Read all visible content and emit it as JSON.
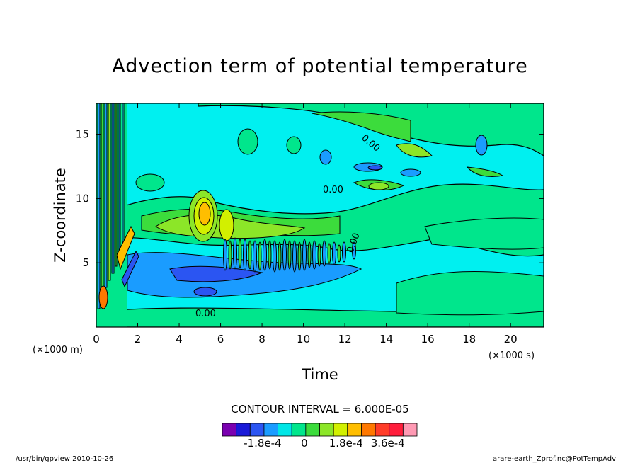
{
  "chart_data": {
    "type": "heatmap",
    "title": "Advection term of potential temperature",
    "xlabel": "Time",
    "ylabel": "Z-coordinate",
    "x_unit": "(×1000 s)",
    "y_unit": "(×1000 m)",
    "xlim": [
      0,
      21.6
    ],
    "ylim": [
      0,
      17.4
    ],
    "x_ticks": [
      "0",
      "2",
      "4",
      "6",
      "8",
      "10",
      "12",
      "14",
      "16",
      "18",
      "20"
    ],
    "y_ticks": [
      "5",
      "10",
      "15"
    ],
    "contour_labels": [
      "0.00",
      "0.00",
      "0.00",
      "0.00"
    ],
    "contour_interval_text": "CONTOUR INTERVAL = 6.000E-05",
    "colorbar": {
      "colors": [
        "#7a00b0",
        "#1a1ad8",
        "#2b55f2",
        "#1a9cff",
        "#00e6e6",
        "#00e68c",
        "#3cdc3c",
        "#8ce628",
        "#d2f000",
        "#ffbe00",
        "#ff7800",
        "#ff3c28",
        "#ff1e3c",
        "#ff9ab4"
      ],
      "tick_labels": [
        "-1.8e-4",
        "0",
        "1.8e-4",
        "3.6e-4"
      ]
    },
    "grid": false
  },
  "footer": {
    "left": "/usr/bin/gpview   2010-10-26",
    "right": "arare-earth_Zprof.nc@PotTempAdv"
  }
}
